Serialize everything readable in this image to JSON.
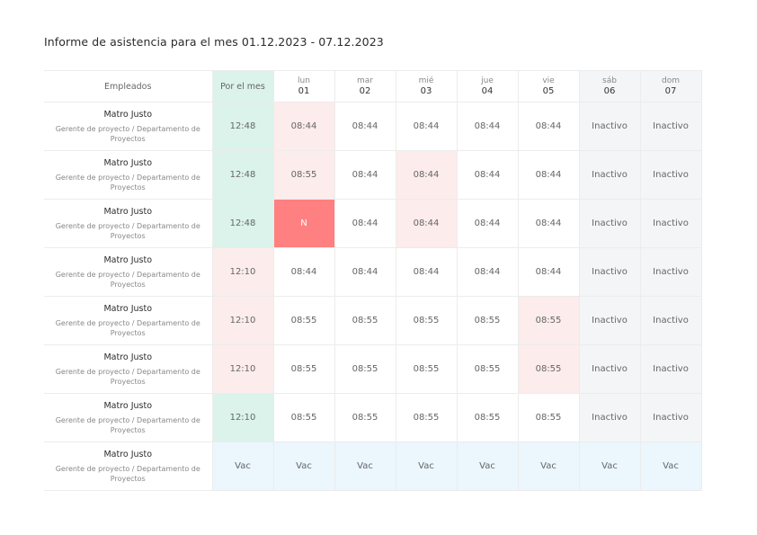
{
  "title": "Informe de asistencia para el mes 01.12.2023 - 07.12.2023",
  "header": {
    "employees_label": "Empleados",
    "total_label": "Por el mes",
    "days": [
      {
        "day": "lun",
        "num": "01",
        "weekend": false
      },
      {
        "day": "mar",
        "num": "02",
        "weekend": false
      },
      {
        "day": "mié",
        "num": "03",
        "weekend": false
      },
      {
        "day": "jue",
        "num": "04",
        "weekend": false
      },
      {
        "day": "vie",
        "num": "05",
        "weekend": false
      },
      {
        "day": "sáb",
        "num": "06",
        "weekend": true
      },
      {
        "day": "dom",
        "num": "07",
        "weekend": true
      }
    ]
  },
  "colors": {
    "green": "#dbf3eb",
    "pink": "#fdecec",
    "red": "#ff8080",
    "weekend": "#f4f5f6",
    "blue": "#ebf6fd"
  },
  "rows": [
    {
      "name": "Matro Justo",
      "role": "Gerente de proyecto / Departamento de Proyectos",
      "total": {
        "value": "12:48",
        "status": "green"
      },
      "cells": [
        {
          "value": "08:44",
          "status": "pink"
        },
        {
          "value": "08:44",
          "status": "white"
        },
        {
          "value": "08:44",
          "status": "white"
        },
        {
          "value": "08:44",
          "status": "white"
        },
        {
          "value": "08:44",
          "status": "white"
        },
        {
          "value": "Inactivo",
          "status": "weekend"
        },
        {
          "value": "Inactivo",
          "status": "weekend"
        }
      ]
    },
    {
      "name": "Matro Justo",
      "role": "Gerente de proyecto / Departamento de Proyectos",
      "total": {
        "value": "12:48",
        "status": "green"
      },
      "cells": [
        {
          "value": "08:55",
          "status": "pink"
        },
        {
          "value": "08:44",
          "status": "white"
        },
        {
          "value": "08:44",
          "status": "pink"
        },
        {
          "value": "08:44",
          "status": "white"
        },
        {
          "value": "08:44",
          "status": "white"
        },
        {
          "value": "Inactivo",
          "status": "weekend"
        },
        {
          "value": "Inactivo",
          "status": "weekend"
        }
      ]
    },
    {
      "name": "Matro Justo",
      "role": "Gerente de proyecto / Departamento de Proyectos",
      "total": {
        "value": "12:48",
        "status": "green"
      },
      "cells": [
        {
          "value": "N",
          "status": "red"
        },
        {
          "value": "08:44",
          "status": "white"
        },
        {
          "value": "08:44",
          "status": "pink"
        },
        {
          "value": "08:44",
          "status": "white"
        },
        {
          "value": "08:44",
          "status": "white"
        },
        {
          "value": "Inactivo",
          "status": "weekend"
        },
        {
          "value": "Inactivo",
          "status": "weekend"
        }
      ]
    },
    {
      "name": "Matro Justo",
      "role": "Gerente de proyecto / Departamento de Proyectos",
      "total": {
        "value": "12:10",
        "status": "pink"
      },
      "cells": [
        {
          "value": "08:44",
          "status": "white"
        },
        {
          "value": "08:44",
          "status": "white"
        },
        {
          "value": "08:44",
          "status": "white"
        },
        {
          "value": "08:44",
          "status": "white"
        },
        {
          "value": "08:44",
          "status": "white"
        },
        {
          "value": "Inactivo",
          "status": "weekend"
        },
        {
          "value": "Inactivo",
          "status": "weekend"
        }
      ]
    },
    {
      "name": "Matro Justo",
      "role": "Gerente de proyecto / Departamento de Proyectos",
      "total": {
        "value": "12:10",
        "status": "pink"
      },
      "cells": [
        {
          "value": "08:55",
          "status": "white"
        },
        {
          "value": "08:55",
          "status": "white"
        },
        {
          "value": "08:55",
          "status": "white"
        },
        {
          "value": "08:55",
          "status": "white"
        },
        {
          "value": "08:55",
          "status": "pink"
        },
        {
          "value": "Inactivo",
          "status": "weekend"
        },
        {
          "value": "Inactivo",
          "status": "weekend"
        }
      ]
    },
    {
      "name": "Matro Justo",
      "role": "Gerente de proyecto / Departamento de Proyectos",
      "total": {
        "value": "12:10",
        "status": "pink"
      },
      "cells": [
        {
          "value": "08:55",
          "status": "white"
        },
        {
          "value": "08:55",
          "status": "white"
        },
        {
          "value": "08:55",
          "status": "white"
        },
        {
          "value": "08:55",
          "status": "white"
        },
        {
          "value": "08:55",
          "status": "pink"
        },
        {
          "value": "Inactivo",
          "status": "weekend"
        },
        {
          "value": "Inactivo",
          "status": "weekend"
        }
      ]
    },
    {
      "name": "Matro Justo",
      "role": "Gerente de proyecto / Departamento de Proyectos",
      "total": {
        "value": "12:10",
        "status": "green"
      },
      "cells": [
        {
          "value": "08:55",
          "status": "white"
        },
        {
          "value": "08:55",
          "status": "white"
        },
        {
          "value": "08:55",
          "status": "white"
        },
        {
          "value": "08:55",
          "status": "white"
        },
        {
          "value": "08:55",
          "status": "white"
        },
        {
          "value": "Inactivo",
          "status": "weekend"
        },
        {
          "value": "Inactivo",
          "status": "weekend"
        }
      ]
    },
    {
      "name": "Matro Justo",
      "role": "Gerente de proyecto / Departamento de Proyectos",
      "total": {
        "value": "Vac",
        "status": "blue"
      },
      "cells": [
        {
          "value": "Vac",
          "status": "blue"
        },
        {
          "value": "Vac",
          "status": "blue"
        },
        {
          "value": "Vac",
          "status": "blue"
        },
        {
          "value": "Vac",
          "status": "blue"
        },
        {
          "value": "Vac",
          "status": "blue"
        },
        {
          "value": "Vac",
          "status": "blue"
        },
        {
          "value": "Vac",
          "status": "blue"
        }
      ]
    }
  ]
}
